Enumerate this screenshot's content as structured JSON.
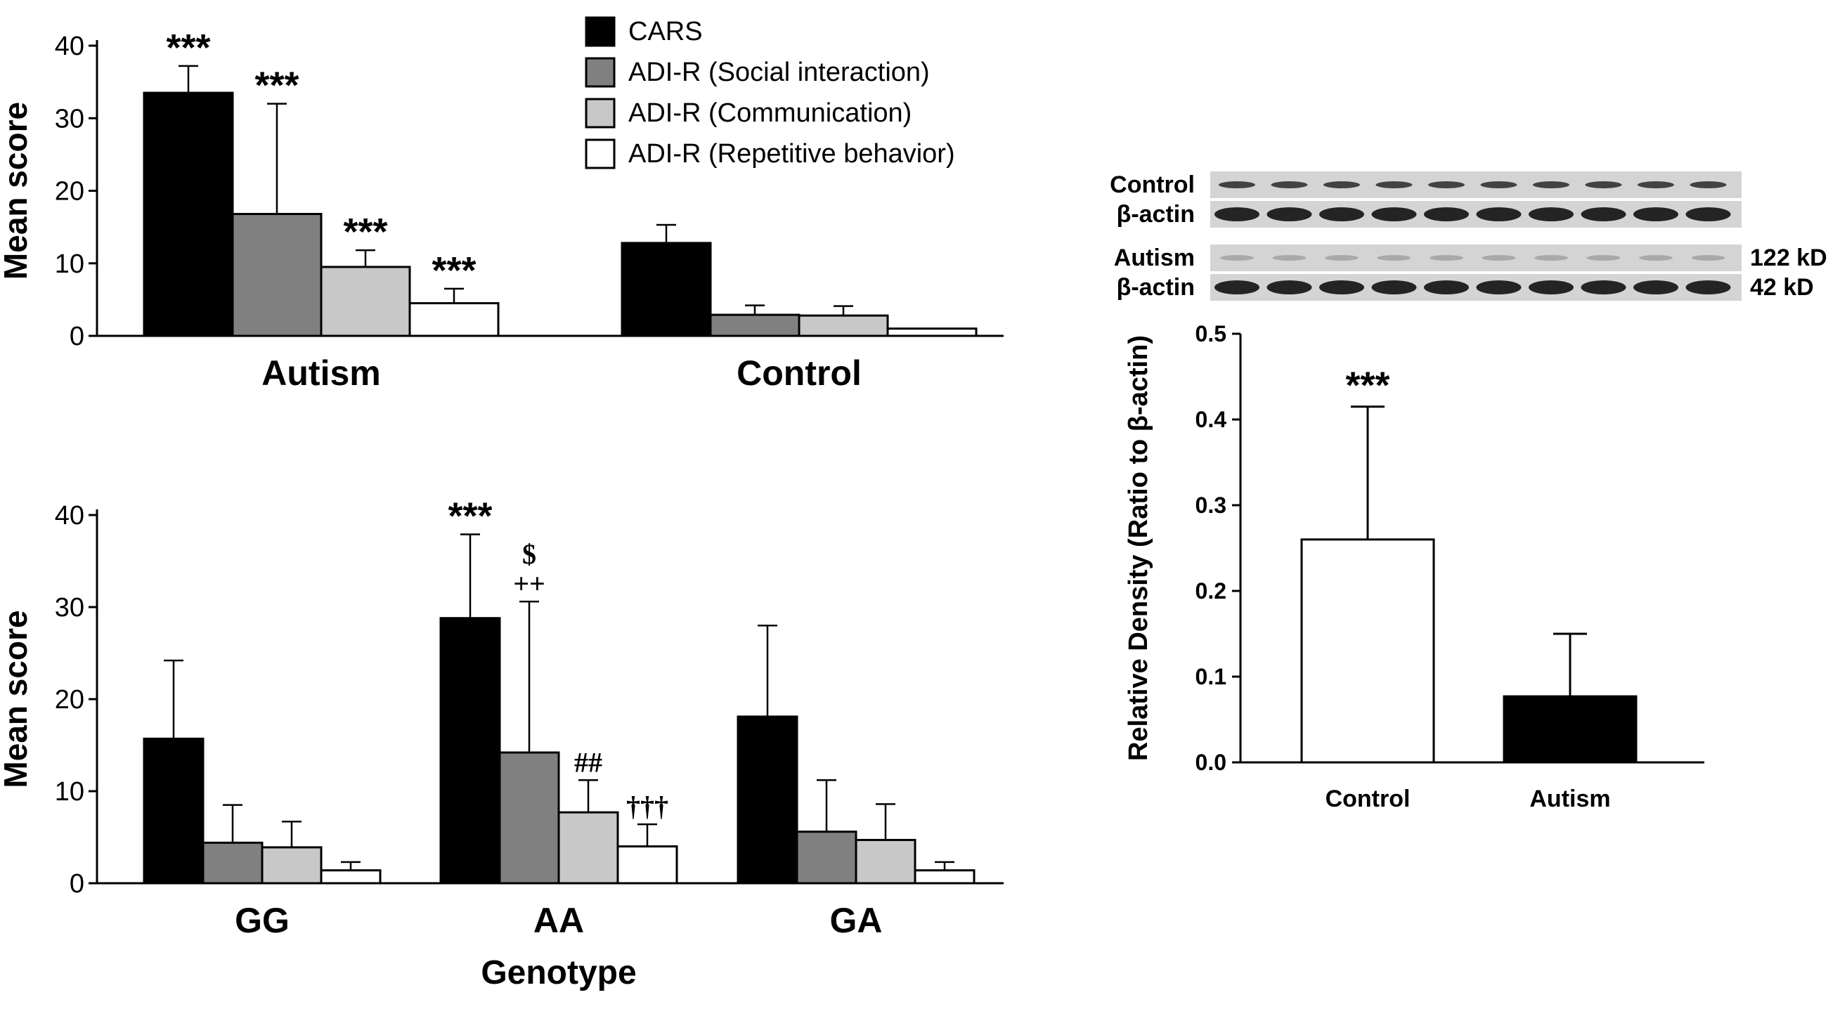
{
  "chart_data": [
    {
      "id": "A",
      "type": "bar",
      "ylabel": "Mean score",
      "xlabel": "",
      "ylim": [
        0,
        40
      ],
      "yticks": [
        "0",
        "10",
        "20",
        "30",
        "40"
      ],
      "categories": [
        "Autism",
        "Control"
      ],
      "legend_position": "top-center",
      "series": [
        {
          "name": "CARS",
          "color": "#000000",
          "values": [
            33.5,
            12.8
          ],
          "errors": [
            37.2,
            15.3
          ],
          "annotations": [
            "***",
            ""
          ]
        },
        {
          "name": "ADI-R (Social interaction)",
          "color": "#808080",
          "values": [
            16.8,
            2.9
          ],
          "errors": [
            32.0,
            4.2
          ],
          "annotations": [
            "***",
            ""
          ]
        },
        {
          "name": "ADI-R (Communication)",
          "color": "#c8c8c8",
          "values": [
            9.5,
            2.8
          ],
          "errors": [
            11.8,
            4.1
          ],
          "annotations": [
            "***",
            ""
          ]
        },
        {
          "name": "ADI-R (Repetitive behavior)",
          "color": "#ffffff",
          "values": [
            4.5,
            1.0
          ],
          "errors": [
            6.5,
            null
          ],
          "annotations": [
            "***",
            ""
          ]
        }
      ]
    },
    {
      "id": "B",
      "type": "bar",
      "ylabel": "Mean score",
      "xlabel": "Genotype",
      "ylim": [
        0,
        40
      ],
      "yticks": [
        "0",
        "10",
        "20",
        "30",
        "40"
      ],
      "categories": [
        "GG",
        "AA",
        "GA"
      ],
      "series": [
        {
          "name": "CARS",
          "color": "#000000",
          "values": [
            15.7,
            28.8,
            18.1
          ],
          "errors": [
            24.2,
            37.9,
            28.0
          ],
          "annotations": [
            "",
            "***",
            ""
          ]
        },
        {
          "name": "ADI-R (Social interaction)",
          "color": "#808080",
          "values": [
            4.4,
            14.2,
            5.6
          ],
          "errors": [
            8.5,
            30.6,
            11.2
          ],
          "annotations": [
            "",
            "$\n++",
            ""
          ]
        },
        {
          "name": "ADI-R (Communication)",
          "color": "#c8c8c8",
          "values": [
            3.9,
            7.7,
            4.7
          ],
          "errors": [
            6.7,
            11.2,
            8.6
          ],
          "annotations": [
            "",
            "##",
            ""
          ]
        },
        {
          "name": "ADI-R (Repetitive behavior)",
          "color": "#ffffff",
          "values": [
            1.4,
            4.0,
            1.4
          ],
          "errors": [
            2.3,
            6.4,
            2.3
          ],
          "annotations": [
            "",
            "†††",
            ""
          ]
        }
      ]
    },
    {
      "id": "C",
      "type": "bar",
      "ylabel": "Relative Density (Ratio to β-actin)",
      "xlabel": "",
      "ylim": [
        0,
        0.5
      ],
      "yticks": [
        "0.0",
        "0.1",
        "0.2",
        "0.3",
        "0.4",
        "0.5"
      ],
      "categories": [
        "Control",
        "Autism"
      ],
      "colors": [
        "#ffffff",
        "#000000"
      ],
      "values": [
        0.26,
        0.077
      ],
      "errors": [
        0.415,
        0.15
      ],
      "annotations": [
        "***",
        ""
      ]
    }
  ],
  "blot": {
    "rows": [
      {
        "label": "Control",
        "kd": ""
      },
      {
        "label": "β-actin",
        "kd": ""
      },
      {
        "label": "Autism",
        "kd": "122 kD"
      },
      {
        "label": "β-actin",
        "kd": "42 kD"
      }
    ],
    "lanes": 10
  }
}
